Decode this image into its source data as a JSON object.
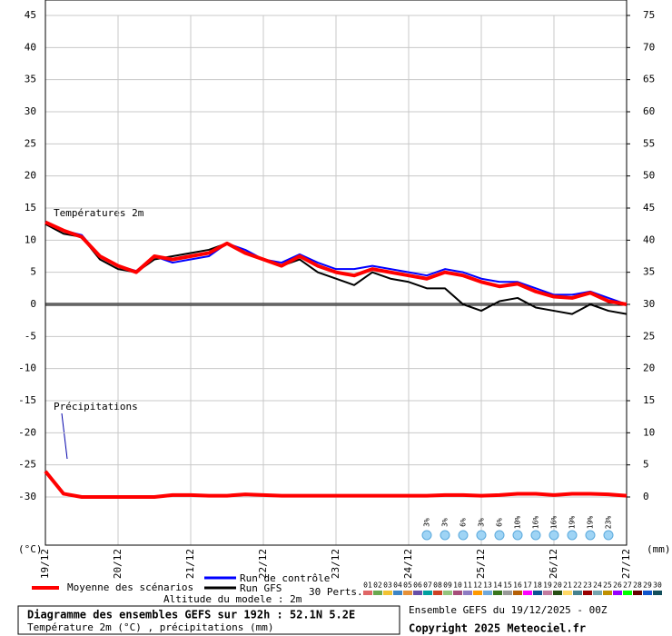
{
  "chart_data": {
    "type": "line",
    "title": "Diagramme des ensembles GEFS sur 192h : 52.1N 5.2E",
    "subtitle": "Température 2m (°C) , précipitations (mm)",
    "run_info": "Ensemble GEFS du 19/12/2025 - 00Z",
    "copyright": "Copyright 2025 Meteociel.fr",
    "altitude": "Altitude du modele : 2m",
    "ylabel": "(°C)",
    "y2label": "(mm)",
    "annotations": [
      "Températures 2m",
      "Précipitations"
    ],
    "x": [
      0,
      6,
      12,
      18,
      24,
      30,
      36,
      42,
      48,
      54,
      60,
      66,
      72,
      78,
      84,
      90,
      96,
      102,
      108,
      114,
      120,
      126,
      132,
      138,
      144,
      150,
      156,
      162,
      168,
      174,
      180,
      186,
      192
    ],
    "xlim": [
      0,
      192
    ],
    "xticks": [
      {
        "value": 0,
        "label": "19/12"
      },
      {
        "value": 24,
        "label": "20/12"
      },
      {
        "value": 48,
        "label": "21/12"
      },
      {
        "value": 72,
        "label": "22/12"
      },
      {
        "value": 96,
        "label": "23/12"
      },
      {
        "value": 120,
        "label": "24/12"
      },
      {
        "value": 144,
        "label": "25/12"
      },
      {
        "value": 168,
        "label": "26/12"
      },
      {
        "value": 192,
        "label": "27/12"
      }
    ],
    "ylim": [
      -37.5,
      45
    ],
    "yticks": [
      -30,
      -25,
      -20,
      -15,
      -10,
      -5,
      0,
      5,
      10,
      15,
      20,
      25,
      30,
      35,
      40,
      45
    ],
    "y2lim": [
      -7.5,
      75
    ],
    "y2ticks": [
      0,
      5,
      10,
      15,
      20,
      25,
      30,
      35,
      40,
      45,
      50,
      55,
      60,
      65,
      70,
      75
    ],
    "grid": true,
    "series": [
      {
        "name": "Run GFS",
        "color": "#000000",
        "values": [
          12.5,
          11,
          10.5,
          7,
          5.5,
          5,
          7,
          7.5,
          8,
          8.5,
          9.5,
          8,
          7,
          6,
          7,
          5,
          4,
          3,
          5,
          4,
          3.5,
          2.5,
          2.5,
          0,
          -1,
          0.5,
          1,
          -0.5,
          -1,
          -1.5,
          0,
          -1,
          -1.5
        ]
      },
      {
        "name": "Run de contrôle",
        "color": "#0000ff",
        "values": [
          12.8,
          11.5,
          10.8,
          7.5,
          6,
          5.2,
          7.5,
          6.5,
          7,
          7.5,
          9.5,
          8.5,
          7,
          6.5,
          7.8,
          6.5,
          5.5,
          5.5,
          6,
          5.5,
          5,
          4.5,
          5.5,
          5,
          4,
          3.5,
          3.5,
          2.5,
          1.5,
          1.5,
          2,
          1,
          0
        ]
      },
      {
        "name": "Moyenne des scénarios",
        "color": "#ff0000",
        "values": [
          12.8,
          11.5,
          10.5,
          7.5,
          6,
          5,
          7.5,
          7,
          7.5,
          8,
          9.5,
          8,
          7,
          6,
          7.5,
          6,
          5,
          4.5,
          5.5,
          5,
          4.5,
          4,
          5,
          4.5,
          3.5,
          2.8,
          3.2,
          2,
          1.2,
          1,
          1.8,
          0.5,
          0
        ]
      },
      {
        "name": "Moyenne des scénarios",
        "color": "#ff0000",
        "axis": "y2",
        "values": [
          4,
          0.5,
          0,
          0,
          0,
          0,
          0,
          0.3,
          0.3,
          0.2,
          0.2,
          0.4,
          0.3,
          0.2,
          0.2,
          0.2,
          0.2,
          0.2,
          0.2,
          0.2,
          0.2,
          0.2,
          0.3,
          0.3,
          0.2,
          0.3,
          0.5,
          0.5,
          0.3,
          0.5,
          0.5,
          0.4,
          0.2
        ]
      }
    ],
    "members_label": "30 Perts.",
    "members": [
      {
        "name": "01",
        "color": "#e06666"
      },
      {
        "name": "02",
        "color": "#6aa84f"
      },
      {
        "name": "03",
        "color": "#f1c232"
      },
      {
        "name": "04",
        "color": "#3d85c6"
      },
      {
        "name": "05",
        "color": "#e69138"
      },
      {
        "name": "06",
        "color": "#674ea7"
      },
      {
        "name": "07",
        "color": "#00a0a0"
      },
      {
        "name": "08",
        "color": "#cc4125"
      },
      {
        "name": "09",
        "color": "#93c47d"
      },
      {
        "name": "10",
        "color": "#a64d79"
      },
      {
        "name": "11",
        "color": "#8e7cc3"
      },
      {
        "name": "12",
        "color": "#ff9900"
      },
      {
        "name": "13",
        "color": "#6fa8dc"
      },
      {
        "name": "14",
        "color": "#38761d"
      },
      {
        "name": "15",
        "color": "#999999"
      },
      {
        "name": "16",
        "color": "#b45f06"
      },
      {
        "name": "17",
        "color": "#ff00ff"
      },
      {
        "name": "18",
        "color": "#0b5394"
      },
      {
        "name": "19",
        "color": "#c27ba0"
      },
      {
        "name": "20",
        "color": "#274e13"
      },
      {
        "name": "21",
        "color": "#ffd966"
      },
      {
        "name": "22",
        "color": "#45818e"
      },
      {
        "name": "23",
        "color": "#990000"
      },
      {
        "name": "24",
        "color": "#76a5af"
      },
      {
        "name": "25",
        "color": "#bf9000"
      },
      {
        "name": "26",
        "color": "#9900ff"
      },
      {
        "name": "27",
        "color": "#00ff00"
      },
      {
        "name": "28",
        "color": "#660000"
      },
      {
        "name": "29",
        "color": "#1155cc"
      },
      {
        "name": "30",
        "color": "#134f5c"
      }
    ],
    "snow_probability": {
      "x": [
        126,
        132,
        138,
        144,
        150,
        156,
        162,
        168,
        174,
        180,
        186
      ],
      "values": [
        3,
        3,
        6,
        3,
        6,
        10,
        16,
        16,
        19,
        19,
        23
      ],
      "value_labels": [
        "3%",
        "3%",
        "6%",
        "3%",
        "6%",
        "10%",
        "16%",
        "16%",
        "19%",
        "19%",
        "23%"
      ]
    }
  }
}
